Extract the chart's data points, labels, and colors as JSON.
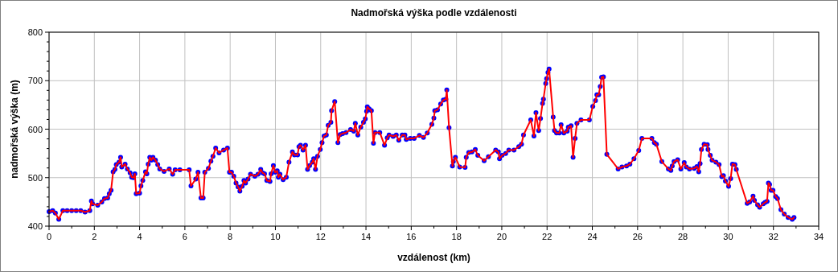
{
  "chart_data": {
    "type": "line",
    "title": "Nadmořská výška podle vzdálenosti",
    "xlabel": "vzdálenost (km)",
    "ylabel": "nadmořská výška (m)",
    "x": [
      0,
      0.16,
      0.28,
      0.43,
      0.61,
      0.8,
      1.0,
      1.2,
      1.4,
      1.59,
      1.8,
      1.87,
      1.92,
      2.15,
      2.33,
      2.45,
      2.59,
      2.66,
      2.74,
      2.83,
      2.91,
      2.97,
      3.09,
      3.16,
      3.21,
      3.36,
      3.46,
      3.58,
      3.65,
      3.73,
      3.79,
      3.85,
      4.0,
      4.06,
      4.14,
      4.26,
      4.32,
      4.38,
      4.45,
      4.52,
      4.59,
      4.7,
      4.8,
      4.89,
      5.08,
      5.31,
      5.46,
      5.57,
      5.78,
      6.19,
      6.27,
      6.48,
      6.58,
      6.71,
      6.81,
      6.88,
      7.04,
      7.15,
      7.24,
      7.36,
      7.51,
      7.71,
      7.88,
      7.97,
      8.06,
      8.16,
      8.26,
      8.35,
      8.43,
      8.53,
      8.61,
      8.68,
      8.79,
      8.9,
      9.09,
      9.23,
      9.35,
      9.43,
      9.52,
      9.62,
      9.76,
      9.81,
      9.91,
      9.99,
      10.08,
      10.13,
      10.2,
      10.34,
      10.48,
      10.6,
      10.75,
      10.84,
      10.98,
      11.04,
      11.11,
      11.22,
      11.33,
      11.42,
      11.51,
      11.63,
      11.69,
      11.77,
      11.86,
      11.98,
      12.06,
      12.15,
      12.25,
      12.33,
      12.45,
      12.48,
      12.62,
      12.76,
      12.86,
      12.97,
      13.12,
      13.32,
      13.46,
      13.53,
      13.64,
      13.77,
      13.89,
      13.97,
      14.03,
      14.06,
      14.14,
      14.24,
      14.33,
      14.4,
      14.61,
      14.82,
      14.94,
      15.02,
      15.2,
      15.34,
      15.45,
      15.6,
      15.72,
      15.78,
      15.96,
      16.13,
      16.36,
      16.54,
      16.71,
      16.91,
      17.0,
      17.04,
      17.16,
      17.3,
      17.42,
      17.53,
      17.57,
      17.67,
      17.82,
      17.86,
      17.95,
      18.14,
      18.38,
      18.43,
      18.54,
      18.68,
      18.83,
      18.94,
      19.22,
      19.41,
      19.73,
      19.85,
      19.9,
      20.01,
      20.17,
      20.31,
      20.54,
      20.75,
      20.87,
      20.96,
      21.28,
      21.42,
      21.51,
      21.63,
      21.71,
      21.8,
      21.84,
      21.94,
      21.98,
      22.04,
      22.09,
      22.27,
      22.33,
      22.42,
      22.54,
      22.62,
      22.74,
      22.89,
      22.94,
      23.06,
      23.15,
      23.24,
      23.32,
      23.5,
      23.87,
      24.02,
      24.14,
      24.2,
      24.28,
      24.35,
      24.41,
      24.49,
      24.64,
      25.14,
      25.31,
      25.51,
      25.66,
      25.84,
      26.05,
      26.19,
      26.63,
      26.74,
      26.83,
      27.07,
      27.36,
      27.47,
      27.53,
      27.61,
      27.77,
      27.91,
      28.06,
      28.15,
      28.29,
      28.5,
      28.62,
      28.7,
      28.76,
      28.82,
      28.94,
      29.08,
      29.11,
      29.21,
      29.29,
      29.46,
      29.6,
      29.72,
      29.79,
      29.88,
      30.02,
      30.11,
      30.19,
      30.3,
      30.36,
      30.84,
      30.95,
      31.1,
      31.16,
      31.3,
      31.39,
      31.55,
      31.63,
      31.72,
      31.78,
      31.83,
      31.9,
      31.98,
      32.1,
      32.18,
      32.33,
      32.48,
      32.65,
      32.83,
      32.91
    ],
    "series": [
      {
        "color": "#ff0000",
        "marker": "none",
        "values": [
          430,
          432,
          427,
          414,
          432,
          432,
          432,
          432,
          432,
          429,
          432,
          452,
          446,
          443,
          450,
          457,
          458,
          467,
          474,
          512,
          517,
          527,
          532,
          542,
          522,
          528,
          518,
          510,
          501,
          500,
          508,
          467,
          468,
          483,
          494,
          512,
          508,
          528,
          542,
          536,
          542,
          536,
          527,
          518,
          513,
          518,
          507,
          516,
          516,
          516,
          483,
          497,
          511,
          458,
          458,
          511,
          519,
          534,
          544,
          561,
          551,
          557,
          561,
          511,
          511,
          503,
          489,
          481,
          472,
          482,
          494,
          489,
          497,
          507,
          503,
          507,
          517,
          510,
          508,
          494,
          492,
          508,
          525,
          511,
          514,
          501,
          507,
          496,
          501,
          532,
          553,
          547,
          547,
          564,
          567,
          557,
          567,
          517,
          525,
          532,
          539,
          517,
          544,
          558,
          572,
          586,
          588,
          608,
          614,
          638,
          657,
          572,
          589,
          591,
          593,
          599,
          596,
          612,
          588,
          604,
          614,
          621,
          637,
          646,
          642,
          638,
          571,
          593,
          593,
          567,
          582,
          588,
          585,
          588,
          577,
          588,
          588,
          579,
          581,
          581,
          587,
          583,
          592,
          610,
          623,
          638,
          640,
          652,
          660,
          662,
          681,
          603,
          524,
          533,
          542,
          522,
          521,
          542,
          552,
          553,
          558,
          546,
          535,
          543,
          557,
          553,
          539,
          546,
          550,
          557,
          557,
          564,
          569,
          588,
          619,
          586,
          634,
          597,
          622,
          653,
          662,
          694,
          704,
          717,
          724,
          625,
          597,
          592,
          592,
          609,
          592,
          596,
          604,
          607,
          542,
          581,
          612,
          619,
          619,
          647,
          659,
          671,
          671,
          688,
          707,
          708,
          548,
          518,
          522,
          524,
          528,
          539,
          556,
          581,
          581,
          572,
          569,
          533,
          518,
          515,
          524,
          533,
          537,
          518,
          531,
          522,
          518,
          519,
          523,
          512,
          529,
          558,
          569,
          568,
          558,
          546,
          536,
          532,
          527,
          502,
          504,
          493,
          482,
          498,
          528,
          527,
          517,
          447,
          450,
          462,
          453,
          444,
          439,
          446,
          449,
          451,
          489,
          486,
          474,
          474,
          461,
          457,
          434,
          425,
          418,
          414,
          418
        ]
      },
      {
        "type": "scatter",
        "color": "#0000ff",
        "marker": "circle",
        "values": [
          430,
          432,
          427,
          414,
          432,
          432,
          432,
          432,
          432,
          429,
          432,
          452,
          446,
          443,
          450,
          457,
          458,
          467,
          474,
          512,
          517,
          527,
          532,
          542,
          522,
          528,
          518,
          510,
          501,
          500,
          508,
          467,
          468,
          483,
          494,
          512,
          508,
          528,
          542,
          536,
          542,
          536,
          527,
          518,
          513,
          518,
          507,
          516,
          516,
          516,
          483,
          497,
          511,
          458,
          458,
          511,
          519,
          534,
          544,
          561,
          551,
          557,
          561,
          511,
          511,
          503,
          489,
          481,
          472,
          482,
          494,
          489,
          497,
          507,
          503,
          507,
          517,
          510,
          508,
          494,
          492,
          508,
          525,
          511,
          514,
          501,
          507,
          496,
          501,
          532,
          553,
          547,
          547,
          564,
          567,
          557,
          567,
          517,
          525,
          532,
          539,
          517,
          544,
          558,
          572,
          586,
          588,
          608,
          614,
          638,
          657,
          572,
          589,
          591,
          593,
          599,
          596,
          612,
          588,
          604,
          614,
          621,
          637,
          646,
          642,
          638,
          571,
          593,
          593,
          567,
          582,
          588,
          585,
          588,
          577,
          588,
          588,
          579,
          581,
          581,
          587,
          583,
          592,
          610,
          623,
          638,
          640,
          652,
          660,
          662,
          681,
          603,
          524,
          533,
          542,
          522,
          521,
          542,
          552,
          553,
          558,
          546,
          535,
          543,
          557,
          553,
          539,
          546,
          550,
          557,
          557,
          564,
          569,
          588,
          619,
          586,
          634,
          597,
          622,
          653,
          662,
          694,
          704,
          717,
          724,
          625,
          597,
          592,
          592,
          609,
          592,
          596,
          604,
          607,
          542,
          581,
          612,
          619,
          619,
          647,
          659,
          671,
          671,
          688,
          707,
          708,
          548,
          518,
          522,
          524,
          528,
          539,
          556,
          581,
          581,
          572,
          569,
          533,
          518,
          515,
          524,
          533,
          537,
          518,
          531,
          522,
          518,
          519,
          523,
          512,
          529,
          558,
          569,
          568,
          558,
          546,
          536,
          532,
          527,
          502,
          504,
          493,
          482,
          498,
          528,
          527,
          517,
          447,
          450,
          462,
          453,
          444,
          439,
          446,
          449,
          451,
          489,
          486,
          474,
          474,
          461,
          457,
          434,
          425,
          418,
          414,
          418
        ]
      }
    ],
    "xlim": [
      0,
      34
    ],
    "xticks": [
      0,
      {
        "value": 1,
        "label": null
      },
      2,
      {
        "value": 3,
        "label": null
      },
      4,
      {
        "value": 5,
        "label": null
      },
      6,
      {
        "value": 7,
        "label": null
      },
      8,
      {
        "value": 9,
        "label": null
      },
      10,
      {
        "value": 11,
        "label": null
      },
      12,
      {
        "value": 13,
        "label": null
      },
      14,
      {
        "value": 15,
        "label": null
      },
      16,
      {
        "value": 17,
        "label": null
      },
      18,
      {
        "value": 19,
        "label": null
      },
      20,
      {
        "value": 21,
        "label": null
      },
      22,
      {
        "value": 23,
        "label": null
      },
      24,
      {
        "value": 25,
        "label": null
      },
      26,
      {
        "value": 27,
        "label": null
      },
      28,
      {
        "value": 29,
        "label": null
      },
      30,
      {
        "value": 31,
        "label": null
      },
      32,
      {
        "value": 33,
        "label": null
      },
      34
    ],
    "ylim": [
      400,
      800
    ],
    "yticks": [
      400,
      {
        "value": 420,
        "label": null
      },
      {
        "value": 440,
        "label": null
      },
      {
        "value": 460,
        "label": null
      },
      {
        "value": 480,
        "label": null
      },
      500,
      {
        "value": 520,
        "label": null
      },
      {
        "value": 540,
        "label": null
      },
      {
        "value": 560,
        "label": null
      },
      {
        "value": 580,
        "label": null
      },
      600,
      {
        "value": 620,
        "label": null
      },
      {
        "value": 640,
        "label": null
      },
      {
        "value": 660,
        "label": null
      },
      {
        "value": 680,
        "label": null
      },
      700,
      {
        "value": 720,
        "label": null
      },
      {
        "value": 740,
        "label": null
      },
      {
        "value": 760,
        "label": null
      },
      {
        "value": 780,
        "label": null
      },
      800
    ],
    "grid": true,
    "legend": false
  }
}
